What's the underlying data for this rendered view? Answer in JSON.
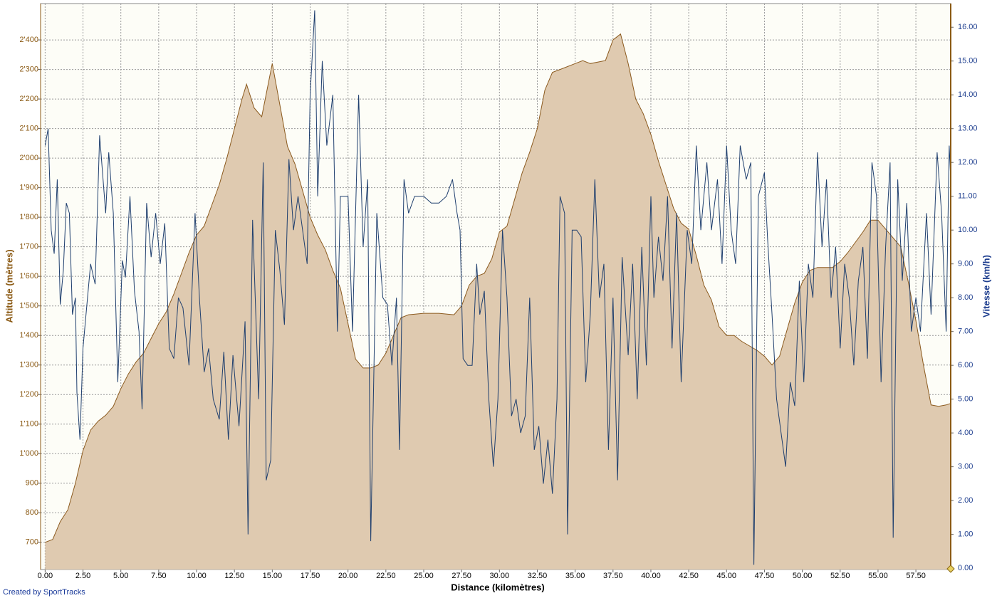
{
  "chart_data": {
    "type": "line",
    "xlabel": "Distance (kilomètres)",
    "ylabel": "Altitude (mètres)",
    "y2label": "Vitesse (km/h)",
    "credit": "Created by SportTracks",
    "grid": true,
    "xlim": [
      -0.3,
      59.8
    ],
    "ylim": [
      608,
      2523
    ],
    "y2lim": [
      -0.04,
      16.7
    ],
    "xticks": [
      {
        "value": 0,
        "label": "0.00"
      },
      {
        "value": 2.5,
        "label": "2.50"
      },
      {
        "value": 5,
        "label": "5.00"
      },
      {
        "value": 7.5,
        "label": "7.50"
      },
      {
        "value": 10,
        "label": "10.00"
      },
      {
        "value": 12.5,
        "label": "12.50"
      },
      {
        "value": 15,
        "label": "15.00"
      },
      {
        "value": 17.5,
        "label": "17.50"
      },
      {
        "value": 20,
        "label": "20.00"
      },
      {
        "value": 22.5,
        "label": "22.50"
      },
      {
        "value": 25,
        "label": "25.00"
      },
      {
        "value": 27.5,
        "label": "27.50"
      },
      {
        "value": 30,
        "label": "30.00"
      },
      {
        "value": 32.5,
        "label": "32.50"
      },
      {
        "value": 35,
        "label": "35.00"
      },
      {
        "value": 37.5,
        "label": "37.50"
      },
      {
        "value": 40,
        "label": "40.00"
      },
      {
        "value": 42.5,
        "label": "42.50"
      },
      {
        "value": 45,
        "label": "45.00"
      },
      {
        "value": 47.5,
        "label": "47.50"
      },
      {
        "value": 50,
        "label": "50.00"
      },
      {
        "value": 52.5,
        "label": "52.50"
      },
      {
        "value": 55,
        "label": "55.00"
      },
      {
        "value": 57.5,
        "label": "57.50"
      }
    ],
    "yticks": [
      700,
      800,
      900,
      {
        "value": 1000,
        "label": "1'000"
      },
      {
        "value": 1100,
        "label": "1'100"
      },
      {
        "value": 1200,
        "label": "1'200"
      },
      {
        "value": 1300,
        "label": "1'300"
      },
      {
        "value": 1400,
        "label": "1'400"
      },
      {
        "value": 1500,
        "label": "1'500"
      },
      {
        "value": 1600,
        "label": "1'600"
      },
      {
        "value": 1700,
        "label": "1'700"
      },
      {
        "value": 1800,
        "label": "1'800"
      },
      {
        "value": 1900,
        "label": "1'900"
      },
      {
        "value": 2000,
        "label": "2'000"
      },
      {
        "value": 2100,
        "label": "2'100"
      },
      {
        "value": 2200,
        "label": "2'200"
      },
      {
        "value": 2300,
        "label": "2'300"
      },
      {
        "value": 2400,
        "label": "2'400"
      }
    ],
    "y2ticks": [
      {
        "value": 0,
        "label": "0.00"
      },
      {
        "value": 1,
        "label": "1.00"
      },
      {
        "value": 2,
        "label": "2.00"
      },
      {
        "value": 3,
        "label": "3.00"
      },
      {
        "value": 4,
        "label": "4.00"
      },
      {
        "value": 5,
        "label": "5.00"
      },
      {
        "value": 6,
        "label": "6.00"
      },
      {
        "value": 7,
        "label": "7.00"
      },
      {
        "value": 8,
        "label": "8.00"
      },
      {
        "value": 9,
        "label": "9.00"
      },
      {
        "value": 10,
        "label": "10.00"
      },
      {
        "value": 11,
        "label": "11.00"
      },
      {
        "value": 12,
        "label": "12.00"
      },
      {
        "value": 13,
        "label": "13.00"
      },
      {
        "value": 14,
        "label": "14.00"
      },
      {
        "value": 15,
        "label": "15.00"
      },
      {
        "value": 16,
        "label": "16.00"
      }
    ],
    "series": [
      {
        "color": "#8b5a1e",
        "fill": "#dfcab0",
        "area": true,
        "axis": "y",
        "x": [
          0,
          0.5,
          1,
          1.5,
          2,
          2.5,
          3,
          3.5,
          4,
          4.5,
          5,
          5.5,
          6,
          6.5,
          7,
          7.5,
          8,
          8.5,
          9,
          9.5,
          10,
          10.5,
          11,
          11.5,
          12,
          12.5,
          13,
          13.3,
          13.8,
          14.3,
          15,
          15.5,
          16,
          16.5,
          17,
          17.5,
          18,
          18.5,
          19,
          19.5,
          20,
          20.5,
          21,
          21.5,
          22,
          22.5,
          23,
          23.5,
          24,
          25,
          26,
          27,
          27.5,
          28,
          28.5,
          29,
          29.5,
          30,
          30.5,
          31,
          31.5,
          32,
          32.5,
          33,
          33.5,
          34,
          35,
          35.5,
          36,
          37,
          37.5,
          38,
          38.5,
          39,
          39.5,
          40,
          40.5,
          41,
          41.5,
          42,
          42.5,
          43,
          43.5,
          44,
          44.5,
          45,
          45.5,
          46,
          47,
          47.5,
          48,
          48.5,
          49,
          49.5,
          50,
          50.5,
          51,
          52,
          52.5,
          53,
          54,
          54.5,
          55,
          55.5,
          56,
          56.5,
          57,
          57.5,
          58,
          58.5,
          59,
          59.5,
          59.8
        ],
        "values": [
          700,
          710,
          770,
          810,
          900,
          1010,
          1080,
          1110,
          1130,
          1160,
          1220,
          1270,
          1310,
          1340,
          1390,
          1440,
          1480,
          1540,
          1610,
          1680,
          1740,
          1770,
          1840,
          1910,
          2000,
          2100,
          2200,
          2250,
          2170,
          2140,
          2320,
          2180,
          2040,
          1980,
          1890,
          1800,
          1740,
          1690,
          1620,
          1560,
          1440,
          1320,
          1290,
          1290,
          1300,
          1340,
          1400,
          1460,
          1470,
          1475,
          1475,
          1470,
          1500,
          1570,
          1600,
          1610,
          1660,
          1750,
          1770,
          1860,
          1950,
          2020,
          2100,
          2230,
          2290,
          2300,
          2320,
          2330,
          2320,
          2330,
          2400,
          2420,
          2320,
          2200,
          2150,
          2080,
          1990,
          1910,
          1830,
          1780,
          1760,
          1670,
          1570,
          1520,
          1430,
          1400,
          1400,
          1380,
          1350,
          1330,
          1300,
          1330,
          1420,
          1510,
          1580,
          1620,
          1630,
          1630,
          1650,
          1680,
          1750,
          1790,
          1790,
          1760,
          1730,
          1700,
          1580,
          1450,
          1300,
          1165,
          1160,
          1165,
          1170
        ]
      },
      {
        "color": "#1f3f6e",
        "axis": "y2",
        "x": [
          0,
          0.2,
          0.4,
          0.6,
          0.8,
          1,
          1.2,
          1.4,
          1.6,
          1.8,
          2,
          2.1,
          2.3,
          2.5,
          2.8,
          3,
          3.3,
          3.6,
          4,
          4.2,
          4.5,
          4.8,
          5.1,
          5.3,
          5.6,
          5.9,
          6.2,
          6.4,
          6.7,
          7,
          7.3,
          7.6,
          7.9,
          8.2,
          8.5,
          8.8,
          9.1,
          9.5,
          9.9,
          10.2,
          10.5,
          10.8,
          11.1,
          11.5,
          11.8,
          12.1,
          12.4,
          12.8,
          13.2,
          13.4,
          13.7,
          14.1,
          14.4,
          14.6,
          14.9,
          15.2,
          15.5,
          15.8,
          16.1,
          16.4,
          16.7,
          17,
          17.3,
          17.5,
          17.8,
          18,
          18.3,
          18.6,
          19,
          19.3,
          19.5,
          20,
          20.3,
          20.7,
          21,
          21.3,
          21.5,
          21.9,
          22.3,
          22.6,
          22.9,
          23.2,
          23.4,
          23.7,
          24,
          24.4,
          25,
          25.5,
          26,
          26.5,
          26.9,
          27.2,
          27.4,
          27.6,
          27.9,
          28.2,
          28.5,
          28.7,
          29,
          29.3,
          29.6,
          29.9,
          30.2,
          30.5,
          30.8,
          31.1,
          31.4,
          31.7,
          32,
          32.3,
          32.6,
          32.9,
          33.2,
          33.5,
          33.8,
          34,
          34.3,
          34.5,
          34.8,
          35.1,
          35.4,
          35.7,
          36,
          36.3,
          36.6,
          36.9,
          37.2,
          37.5,
          37.8,
          38.1,
          38.5,
          38.8,
          39.1,
          39.4,
          39.7,
          40,
          40.2,
          40.5,
          40.8,
          41.1,
          41.4,
          41.7,
          42,
          42.4,
          42.7,
          43,
          43.3,
          43.7,
          44,
          44.4,
          44.7,
          45,
          45.3,
          45.6,
          45.9,
          46.3,
          46.6,
          46.8,
          47.1,
          47.5,
          47.7,
          48,
          48.3,
          48.6,
          48.9,
          49.2,
          49.5,
          49.8,
          50.1,
          50.4,
          50.7,
          51,
          51.3,
          51.6,
          51.9,
          52.2,
          52.5,
          52.8,
          53.1,
          53.4,
          53.7,
          54,
          54.3,
          54.6,
          54.9,
          55.2,
          55.5,
          55.8,
          56,
          56.3,
          56.6,
          56.9,
          57.2,
          57.5,
          57.8,
          58.2,
          58.5,
          58.9,
          59.2,
          59.5,
          59.7,
          59.8
        ],
        "values": [
          12.5,
          13.0,
          10,
          9.3,
          11.5,
          7.8,
          8.8,
          10.8,
          10.5,
          7.5,
          8,
          5.2,
          3.8,
          6.5,
          8.0,
          9.0,
          8.4,
          12.8,
          10.5,
          12.3,
          10.5,
          5.5,
          9.1,
          8.6,
          11.0,
          8.2,
          7.0,
          4.7,
          10.8,
          9.2,
          10.5,
          9.0,
          10.2,
          6.5,
          6.2,
          8.0,
          7.7,
          6.0,
          10.5,
          7.9,
          5.8,
          6.5,
          5.0,
          4.4,
          6.4,
          3.8,
          6.3,
          4.2,
          7.3,
          1.0,
          10.3,
          5.0,
          12.0,
          2.6,
          3.2,
          10.0,
          8.8,
          7.2,
          12.1,
          10.0,
          11.0,
          10.0,
          9.0,
          14.0,
          16.5,
          11.0,
          15.0,
          12.5,
          14.0,
          7.0,
          11.0,
          11.0,
          7.0,
          14.0,
          9.5,
          11.5,
          0.8,
          10.5,
          8.0,
          7.8,
          6.0,
          8.0,
          3.5,
          11.5,
          10.5,
          11.0,
          11.0,
          10.8,
          10.8,
          11.0,
          11.5,
          10.5,
          10.0,
          6.2,
          6.0,
          6.0,
          9.0,
          7.5,
          8.2,
          5.0,
          3.0,
          5.0,
          10.0,
          8.0,
          4.5,
          5.0,
          4.0,
          4.5,
          8.0,
          3.5,
          4.2,
          2.5,
          3.8,
          2.2,
          5.0,
          11.0,
          10.5,
          1.0,
          10.0,
          10.0,
          9.8,
          5.5,
          7.5,
          11.5,
          8.0,
          9.0,
          3.5,
          8.0,
          2.6,
          9.2,
          6.3,
          9.0,
          5.0,
          9.5,
          6.0,
          11.0,
          8.0,
          9.8,
          8.5,
          11.0,
          6.5,
          10.5,
          5.5,
          10.0,
          9.0,
          12.5,
          10.0,
          12.0,
          10.0,
          11.5,
          9.0,
          12.5,
          10.0,
          9.0,
          12.5,
          11.5,
          12.0,
          0.1,
          11.0,
          11.7,
          9.8,
          7.5,
          5.0,
          4.0,
          3.0,
          5.5,
          4.8,
          8.5,
          5.5,
          9.0,
          8.0,
          12.3,
          9.5,
          11.5,
          8.0,
          9.5,
          6.5,
          9.0,
          8.0,
          6.0,
          8.5,
          9.5,
          6.2,
          12.0,
          11.0,
          5.5,
          9.5,
          12.0,
          0.9,
          11.5,
          8.5,
          10.8,
          7.0,
          8.0,
          7.0,
          10.5,
          7.5,
          12.3,
          10.5,
          7.0,
          12.5,
          11.5
        ]
      }
    ]
  }
}
